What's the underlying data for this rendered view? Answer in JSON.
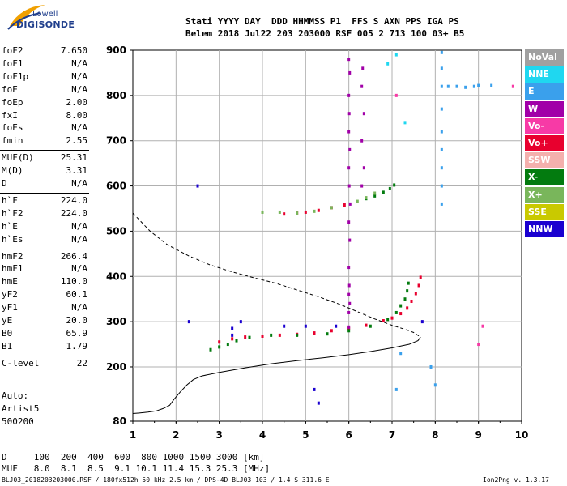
{
  "logo": {
    "line1": "Lowell",
    "line2": "DIGISONDE"
  },
  "header": {
    "line1": "Stati YYYY DAY  DDD HHMMSS P1  FFS S AXN PPS IGA PS",
    "line2": "Belem 2018 Jul22 203 203000 RSF 005 2 713 100 03+ B5"
  },
  "params": [
    {
      "k": "foF2",
      "v": "7.650"
    },
    {
      "k": "foF1",
      "v": "N/A"
    },
    {
      "k": "foF1p",
      "v": "N/A"
    },
    {
      "k": "foE",
      "v": "N/A"
    },
    {
      "k": "foEp",
      "v": "2.00"
    },
    {
      "k": "fxI",
      "v": "8.00"
    },
    {
      "k": "foEs",
      "v": "N/A"
    },
    {
      "k": "fmin",
      "v": "2.55"
    },
    {
      "k": "MUF(D)",
      "v": "25.31"
    },
    {
      "k": "M(D)",
      "v": "3.31"
    },
    {
      "k": "D",
      "v": "N/A"
    },
    {
      "k": "h`F",
      "v": "224.0"
    },
    {
      "k": "h`F2",
      "v": "224.0"
    },
    {
      "k": "h`E",
      "v": "N/A"
    },
    {
      "k": "h`Es",
      "v": "N/A"
    },
    {
      "k": "hmF2",
      "v": "266.4"
    },
    {
      "k": "hmF1",
      "v": "N/A"
    },
    {
      "k": "hmE",
      "v": "110.0"
    },
    {
      "k": "yF2",
      "v": "60.1"
    },
    {
      "k": "yF1",
      "v": "N/A"
    },
    {
      "k": "yE",
      "v": "20.0"
    },
    {
      "k": "B0",
      "v": "65.9"
    },
    {
      "k": "B1",
      "v": "1.79"
    },
    {
      "k": "C-level",
      "v": "22"
    }
  ],
  "auto": {
    "label": "Auto:",
    "artist": "Artist5",
    "version": "500200"
  },
  "table": {
    "d_row": "D     100  200  400  600  800 1000 1500 3000 [km]",
    "muf_row": "MUF   8.0  8.1  8.5  9.1 10.1 11.4 15.3 25.3 [MHz]"
  },
  "footer": {
    "file": "BLJ03_2018203203000.RSF / 180fx512h 50 kHz 2.5 km / DPS-4D BLJ03 103 / 1.4 S 311.6 E",
    "program": "Ion2Png v. 1.3.17"
  },
  "legend": [
    {
      "label": "NoVal",
      "color": "#a0a0a0"
    },
    {
      "label": "NNE",
      "color": "#1fd7f0"
    },
    {
      "label": "E",
      "color": "#3aa0ec"
    },
    {
      "label": "W",
      "color": "#a100a8"
    },
    {
      "label": "Vo-",
      "color": "#f73aa6"
    },
    {
      "label": "Vo+",
      "color": "#e8002e"
    },
    {
      "label": "SSW",
      "color": "#f4b0ad"
    },
    {
      "label": "X-",
      "color": "#037b0f"
    },
    {
      "label": "X+",
      "color": "#79b65b"
    },
    {
      "label": "SSE",
      "color": "#c9c900"
    },
    {
      "label": "NNW",
      "color": "#1a00d0"
    }
  ],
  "chart_data": {
    "type": "scatter",
    "xlim": [
      1,
      10
    ],
    "ylim": [
      80,
      900
    ],
    "xticks": [
      1,
      2,
      3,
      4,
      5,
      6,
      7,
      8,
      9,
      10
    ],
    "yticks": [
      80,
      200,
      300,
      400,
      500,
      600,
      700,
      800,
      900
    ],
    "grid": true,
    "traces": [
      {
        "color": "#e8002e",
        "points": [
          [
            3.0,
            255
          ],
          [
            3.3,
            262
          ],
          [
            3.6,
            266
          ],
          [
            4.0,
            268
          ],
          [
            4.4,
            270
          ],
          [
            4.8,
            272
          ],
          [
            5.2,
            275
          ],
          [
            5.6,
            280
          ],
          [
            6.0,
            285
          ],
          [
            6.4,
            292
          ],
          [
            6.8,
            302
          ],
          [
            7.0,
            308
          ],
          [
            7.2,
            318
          ],
          [
            7.35,
            330
          ],
          [
            7.45,
            345
          ],
          [
            7.55,
            362
          ],
          [
            7.62,
            380
          ],
          [
            7.66,
            398
          ]
        ]
      },
      {
        "color": "#e8002e",
        "points": [
          [
            4.5,
            538
          ],
          [
            4.8,
            540
          ],
          [
            5.0,
            542
          ],
          [
            5.3,
            546
          ],
          [
            5.6,
            552
          ],
          [
            5.9,
            558
          ]
        ]
      },
      {
        "color": "#037b0f",
        "points": [
          [
            2.8,
            238
          ],
          [
            3.0,
            244
          ],
          [
            3.2,
            250
          ],
          [
            3.4,
            258
          ],
          [
            3.7,
            265
          ],
          [
            4.2,
            270
          ],
          [
            4.8,
            270
          ],
          [
            5.5,
            273
          ],
          [
            6.0,
            280
          ],
          [
            6.5,
            290
          ],
          [
            6.9,
            305
          ],
          [
            7.1,
            320
          ],
          [
            7.2,
            335
          ],
          [
            7.3,
            350
          ],
          [
            7.35,
            368
          ],
          [
            7.38,
            385
          ]
        ]
      },
      {
        "color": "#037b0f",
        "points": [
          [
            6.4,
            572
          ],
          [
            6.6,
            578
          ],
          [
            6.8,
            586
          ],
          [
            6.95,
            594
          ],
          [
            7.05,
            602
          ]
        ]
      },
      {
        "color": "#79b65b",
        "points": [
          [
            4.0,
            542
          ],
          [
            4.4,
            542
          ],
          [
            4.8,
            540
          ],
          [
            5.2,
            544
          ],
          [
            5.6,
            552
          ],
          [
            6.2,
            566
          ],
          [
            6.4,
            574
          ],
          [
            6.6,
            584
          ]
        ]
      },
      {
        "color": "#a100a8",
        "points": [
          [
            6.0,
            288
          ],
          [
            6.0,
            320
          ],
          [
            6.02,
            340
          ],
          [
            6.0,
            360
          ],
          [
            6.01,
            380
          ],
          [
            6.0,
            420
          ],
          [
            6.02,
            480
          ],
          [
            6.0,
            520
          ],
          [
            6.03,
            560
          ],
          [
            6.01,
            600
          ],
          [
            6.0,
            640
          ],
          [
            6.02,
            680
          ],
          [
            6.0,
            720
          ],
          [
            6.01,
            760
          ],
          [
            6.0,
            800
          ],
          [
            6.02,
            850
          ],
          [
            6.0,
            880
          ]
        ]
      },
      {
        "color": "#a100a8",
        "points": [
          [
            6.3,
            600
          ],
          [
            6.35,
            640
          ],
          [
            6.3,
            700
          ],
          [
            6.35,
            760
          ],
          [
            6.3,
            820
          ],
          [
            6.32,
            860
          ]
        ]
      },
      {
        "color": "#1a00d0",
        "points": [
          [
            3.3,
            285
          ],
          [
            3.3,
            270
          ],
          [
            4.5,
            290
          ],
          [
            5.0,
            290
          ],
          [
            2.3,
            300
          ],
          [
            5.7,
            290
          ],
          [
            2.5,
            600
          ],
          [
            3.5,
            300
          ],
          [
            7.7,
            300
          ],
          [
            5.2,
            150
          ],
          [
            5.3,
            120
          ]
        ]
      },
      {
        "color": "#3aa0ec",
        "points": [
          [
            8.15,
            895
          ],
          [
            8.15,
            860
          ],
          [
            8.15,
            820
          ],
          [
            8.15,
            770
          ],
          [
            8.15,
            720
          ],
          [
            8.15,
            680
          ],
          [
            8.15,
            640
          ],
          [
            8.15,
            600
          ],
          [
            8.15,
            560
          ],
          [
            8.3,
            820
          ],
          [
            8.5,
            820
          ],
          [
            8.7,
            818
          ],
          [
            8.9,
            820
          ],
          [
            9.0,
            822
          ],
          [
            9.3,
            822
          ],
          [
            7.9,
            200
          ],
          [
            8.0,
            160
          ],
          [
            7.2,
            230
          ],
          [
            7.1,
            150
          ]
        ]
      },
      {
        "color": "#1fd7f0",
        "points": [
          [
            7.1,
            890
          ],
          [
            7.3,
            740
          ],
          [
            6.9,
            870
          ]
        ]
      },
      {
        "color": "#f73aa6",
        "points": [
          [
            9.0,
            250
          ],
          [
            9.1,
            290
          ],
          [
            9.8,
            820
          ],
          [
            7.1,
            800
          ]
        ]
      }
    ],
    "curves": [
      {
        "style": "dashed",
        "points": [
          [
            1.0,
            540
          ],
          [
            1.4,
            500
          ],
          [
            1.8,
            470
          ],
          [
            2.3,
            445
          ],
          [
            2.8,
            425
          ],
          [
            3.3,
            410
          ],
          [
            3.8,
            397
          ],
          [
            4.3,
            385
          ],
          [
            4.8,
            370
          ],
          [
            5.3,
            355
          ],
          [
            5.8,
            338
          ],
          [
            6.2,
            322
          ],
          [
            6.6,
            306
          ],
          [
            7.0,
            292
          ],
          [
            7.3,
            283
          ],
          [
            7.5,
            276
          ],
          [
            7.66,
            266
          ]
        ]
      },
      {
        "style": "solid",
        "points": [
          [
            7.66,
            266
          ],
          [
            7.6,
            258
          ],
          [
            7.4,
            250
          ],
          [
            7.0,
            242
          ],
          [
            6.5,
            234
          ],
          [
            6.0,
            227
          ],
          [
            5.4,
            220
          ],
          [
            4.8,
            214
          ],
          [
            4.2,
            207
          ],
          [
            3.6,
            198
          ],
          [
            3.0,
            188
          ],
          [
            2.6,
            180
          ],
          [
            2.4,
            172
          ],
          [
            2.25,
            160
          ],
          [
            2.1,
            145
          ],
          [
            1.95,
            128
          ],
          [
            1.85,
            115
          ],
          [
            1.7,
            108
          ],
          [
            1.55,
            103
          ],
          [
            1.35,
            100
          ],
          [
            1.15,
            98
          ],
          [
            1.0,
            97
          ]
        ]
      }
    ]
  }
}
